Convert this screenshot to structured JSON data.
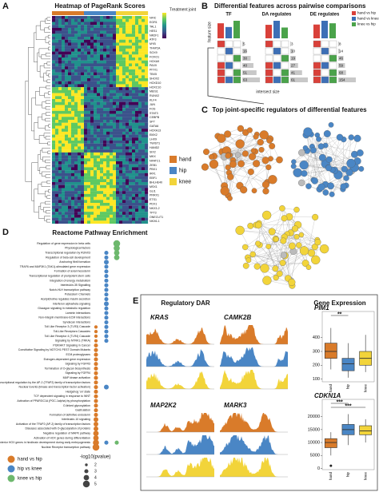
{
  "panel_a": {
    "letter": "A",
    "title": "Heatmap of PageRank Scores",
    "legend_title": "Treatment joint",
    "groups": [
      "hand",
      "hip",
      "knee"
    ],
    "colors": [
      "#d97b2a",
      "#4a86c5",
      "#f2d43a"
    ],
    "genes": [
      "NFIC",
      "EGR1",
      "TAL1",
      "HES1",
      "NR2F1",
      "ATF3",
      "MYB",
      "TFAP2A",
      "SOX9",
      "FOXO1",
      "HOXA9",
      "PAX9",
      "PITX1",
      "TBX5",
      "SHOX2",
      "HOXD10",
      "HOXC10",
      "MEIS1",
      "RUNX2",
      "KLF4",
      "JUN",
      "FOS",
      "STAT3",
      "CEBPB",
      "SP7",
      "GATA6",
      "HOXA13",
      "EMX2",
      "LHX9",
      "TWIST1",
      "HAND2",
      "SIX2",
      "MKX",
      "NFATC1",
      "ZEB1",
      "PBX1",
      "IRF1",
      "EBF1",
      "BHLHE40",
      "MSX1",
      "GLI1",
      "PRRX1",
      "ETS1",
      "PDX1",
      "NKX3-2",
      "TP73",
      "ONECUT1",
      "NKX6-1"
    ]
  },
  "panel_b": {
    "letter": "B",
    "title": "Differential features across pairwise comparisons",
    "feature_size": "feature size",
    "intersect_size": "intersect size",
    "legend": [
      "hand vs hip",
      "hand vs knee",
      "knee vs hip"
    ],
    "colors": [
      "#d9413a",
      "#3d6fb6",
      "#4aa34a"
    ],
    "plots": [
      {
        "name": "TF",
        "feature_sizes": [
          60,
          45,
          70
        ],
        "counts": [
          5,
          16,
          30,
          40,
          51,
          63
        ]
      },
      {
        "name": "DA regulates",
        "feature_sizes": [
          50,
          65,
          40
        ],
        "counts": [
          3,
          10,
          19,
          27,
          41,
          61
        ]
      },
      {
        "name": "DE regulates",
        "feature_sizes": [
          55,
          70,
          60
        ],
        "counts": [
          8,
          14,
          46,
          59,
          68,
          154
        ]
      }
    ]
  },
  "panel_c": {
    "letter": "C",
    "title": "Top joint-specific regulators of differential features"
  },
  "chart_data": {
    "type": "dot",
    "letter": "D",
    "title": "Reactome Pathway Enrichment",
    "categories": [
      "Regulation of gene expression in beta cells",
      "Physiological factors",
      "Transcriptional regulation by RUNX3",
      "Regulation of beta-cell development",
      "Anchoring fibril formation",
      "TRAF6 and MAP3K1 (TAK1)-stimulated gene expression",
      "Formation of axial mesoderm",
      "Transcriptional regulation of pluripotent stem cells",
      "Integration of energy metabolism",
      "Interleukin-35 Signalling",
      "Notch-HLH transcription pathway",
      "Potassium Channels",
      "Acetylcholine regulates insulin secretion",
      "Interferon alpha/beta signaling",
      "Glucagon signaling in metabolic regulation",
      "Laminin interactions",
      "Non-integrin membrane-ECM interactions",
      "Syndecan interactions",
      "Toll Like Receptor 3 (TLR3) Cascade",
      "Toll-Like Receptors Cascades",
      "Toll Like Receptor 4 (TLR4) Cascade",
      "Signaling by NTRK1 (TRKA)",
      "PI3K/AKT Signaling in Cancer",
      "Constitutive Signaling by NOTCH1 PEST Domain Mutants",
      "ECM proteoglycans",
      "Estrogen-dependent gene expression",
      "Signaling by FGFR3",
      "Termination of O-glycan biosynthesis",
      "Signaling by FGFR4",
      "MAP kinase activation",
      "Transcriptional regulation by the AP-2 (TFAP2) family of transcription factors",
      "Nuclear Events (kinase and transcription factor activation)",
      "Hedgehog 'on' state",
      "TCF dependent signaling in response to WNT",
      "Activation of PPARGC1A (PGC-1alpha) by phosphorylation",
      "O-linked glycosylation",
      "Gastrulation",
      "Formation of definitive endoderm",
      "Interleukin-10 signaling",
      "Activation of the TFAP2 (AP-2) family of transcription factors",
      "Diseases associated with O-glycosylation of proteins",
      "Negative regulation of MAPK pathway",
      "Activation of HOX genes during differentiation",
      "Activation of anterior HOX genes in hindbrain development during early embryogenesis",
      "Nuclear Receptor transcription pathway"
    ],
    "series": [
      {
        "name": "hand vs hip",
        "color": "#d97b2a",
        "values": [
          null,
          null,
          null,
          null,
          null,
          null,
          null,
          null,
          null,
          null,
          null,
          null,
          null,
          null,
          null,
          null,
          null,
          null,
          2.5,
          2.5,
          2.5,
          2.5,
          3,
          3,
          3,
          3,
          3,
          3,
          3,
          3,
          3,
          3,
          3,
          3,
          3,
          3,
          3,
          3,
          3.5,
          3.5,
          3.5,
          4,
          4,
          4.5,
          5
        ]
      },
      {
        "name": "hip vs knee",
        "color": "#4a86c5",
        "values": [
          null,
          null,
          3,
          3,
          3.5,
          3,
          3,
          3,
          3,
          3,
          3,
          3,
          3,
          3.5,
          3,
          3,
          3,
          3,
          3,
          3,
          3,
          3,
          null,
          null,
          null,
          null,
          null,
          null,
          null,
          null,
          null,
          3.5,
          null,
          null,
          null,
          null,
          null,
          null,
          null,
          null,
          null,
          null,
          null,
          3,
          null
        ]
      },
      {
        "name": "knee vs hip",
        "color": "#6db86d",
        "values": [
          5,
          4.5,
          4,
          4,
          null,
          null,
          null,
          null,
          null,
          null,
          null,
          null,
          null,
          null,
          null,
          null,
          null,
          null,
          null,
          null,
          null,
          null,
          null,
          null,
          null,
          null,
          null,
          null,
          null,
          null,
          null,
          null,
          null,
          null,
          null,
          null,
          null,
          null,
          null,
          null,
          null,
          null,
          null,
          3,
          null
        ]
      }
    ],
    "size_title": "-log10(pvalue)",
    "size_ticks": [
      2,
      3,
      4,
      5
    ]
  },
  "panel_e": {
    "letter": "E",
    "dar_title": "Regulatory DAR",
    "expr_title": "Gene Expression",
    "tracks": [
      "KRAS",
      "CAMK2B",
      "MAP2K2",
      "MARK3"
    ],
    "boxes": [
      {
        "gene": "PIM1",
        "ylim": [
          80,
          520
        ],
        "yticks": [
          100,
          200,
          300,
          400
        ],
        "groups": [
          "hand",
          "hip",
          "knee"
        ],
        "stats": [
          [
            170,
            250,
            300,
            360,
            470
          ],
          [
            110,
            160,
            210,
            250,
            360
          ],
          [
            150,
            200,
            250,
            300,
            420
          ]
        ],
        "outliers": [
          [],
          [],
          []
        ],
        "sig": [
          "**"
        ]
      },
      {
        "gene": "CDKN1A",
        "ylim": [
          -500,
          23000
        ],
        "yticks": [
          0,
          5000,
          10000,
          15000,
          20000
        ],
        "groups": [
          "hand",
          "hip",
          "knee"
        ],
        "stats": [
          [
            5000,
            8000,
            10000,
            11500,
            14000
          ],
          [
            9000,
            13000,
            15000,
            17000,
            21000
          ],
          [
            10000,
            13000,
            14500,
            16500,
            19000
          ]
        ],
        "outliers": [
          [
            1000
          ],
          [],
          []
        ],
        "sig": [
          "***",
          "***"
        ]
      }
    ]
  }
}
